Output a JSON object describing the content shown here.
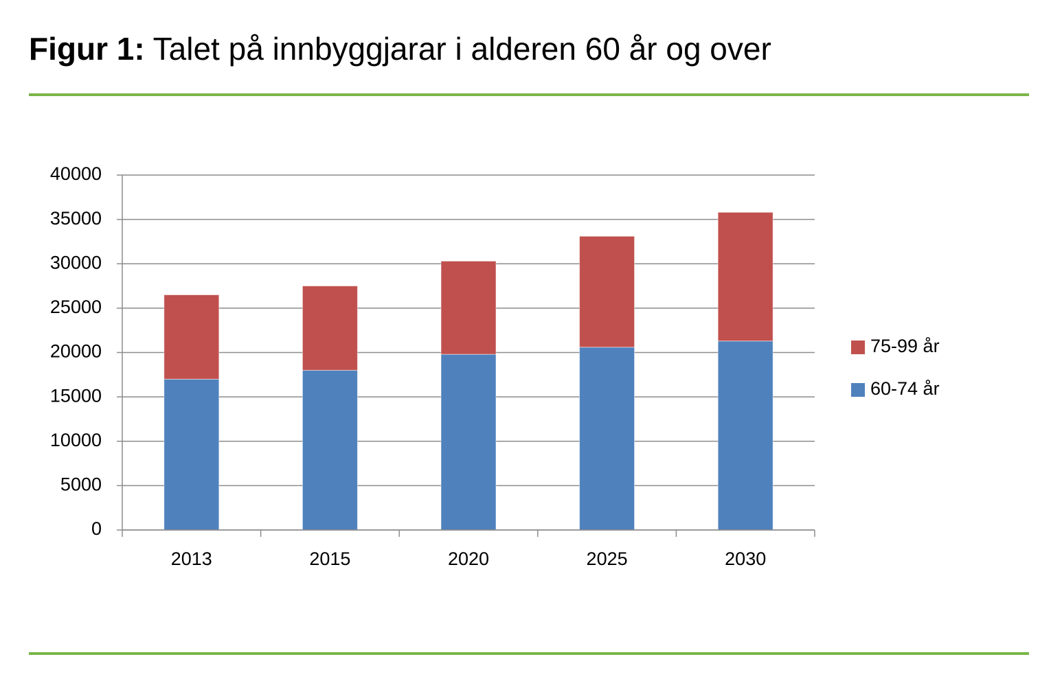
{
  "chart_data": {
    "type": "stacked_bar",
    "title_label": "Figur 1:",
    "title": "Talet på innbyggjarar i alderen 60 år og over",
    "categories": [
      "2013",
      "2015",
      "2020",
      "2025",
      "2030"
    ],
    "series": [
      {
        "name": "60-74 år",
        "color": "#4f81bd",
        "values": [
          17000,
          18000,
          19800,
          20600,
          21300
        ]
      },
      {
        "name": "75-99 år",
        "color": "#c0504d",
        "values": [
          9500,
          9500,
          10500,
          12500,
          14500
        ]
      }
    ],
    "ylim": [
      0,
      40000
    ],
    "yticks": [
      0,
      5000,
      10000,
      15000,
      20000,
      25000,
      30000,
      35000,
      40000
    ],
    "grid": true,
    "legend": "right"
  }
}
